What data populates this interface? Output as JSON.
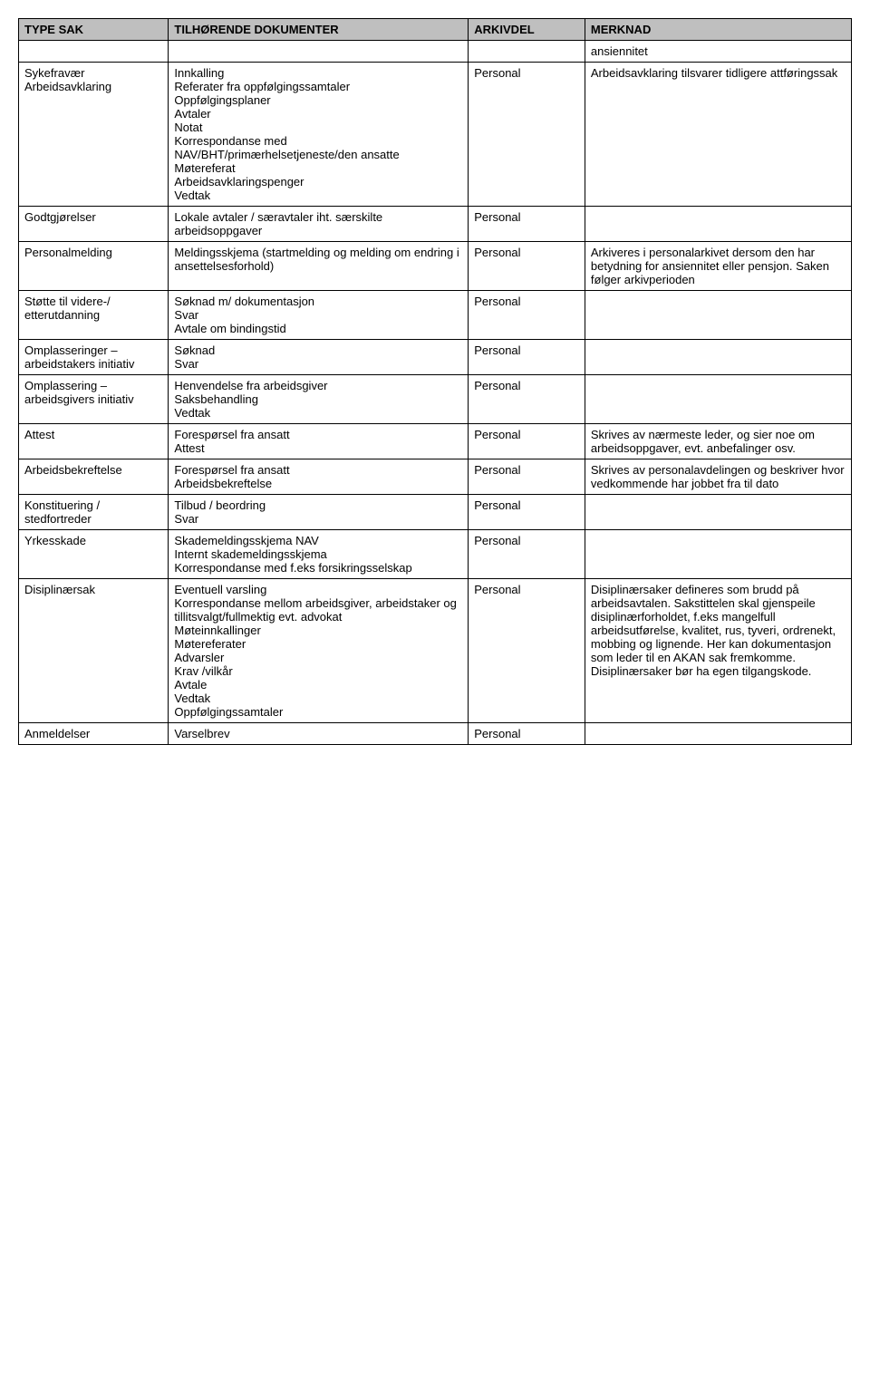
{
  "table": {
    "headers": [
      "TYPE SAK",
      "TILHØRENDE DOKUMENTER",
      "ARKIVDEL",
      "MERKNAD"
    ],
    "header_bg": "#bfbfbf",
    "border_color": "#000000",
    "font_family": "Arial",
    "font_size": 13,
    "rows": [
      {
        "type": "",
        "docs": "",
        "arkiv": "",
        "merk": "ansiennitet"
      },
      {
        "type": "Sykefravær\nArbeidsavklaring",
        "docs": "Innkalling\nReferater fra oppfølgingssamtaler\nOppfølgingsplaner\nAvtaler\nNotat\nKorrespondanse med NAV/BHT/primærhelsetjeneste/den ansatte\nMøtereferat\nArbeidsavklaringspenger\nVedtak",
        "arkiv": "Personal",
        "merk": "Arbeidsavklaring tilsvarer tidligere attføringssak"
      },
      {
        "type": "Godtgjørelser",
        "docs": "Lokale avtaler / særavtaler iht. særskilte arbeidsoppgaver",
        "arkiv": "Personal",
        "merk": ""
      },
      {
        "type": "Personalmelding",
        "docs": "Meldingsskjema (startmelding og melding om endring i ansettelsesforhold)",
        "arkiv": "Personal",
        "merk": "Arkiveres i personalarkivet dersom den har betydning for ansiennitet eller pensjon. Saken følger arkivperioden"
      },
      {
        "type": "Støtte til videre-/ etterutdanning",
        "docs": "Søknad m/ dokumentasjon\nSvar\nAvtale om bindingstid",
        "arkiv": "Personal",
        "merk": ""
      },
      {
        "type": "Omplasseringer – arbeidstakers initiativ",
        "docs": "Søknad\nSvar",
        "arkiv": "Personal",
        "merk": ""
      },
      {
        "type": "Omplassering – arbeidsgivers initiativ",
        "docs": "Henvendelse fra arbeidsgiver\nSaksbehandling\nVedtak",
        "arkiv": "Personal",
        "merk": ""
      },
      {
        "type": "Attest",
        "docs": "Forespørsel fra ansatt\nAttest",
        "arkiv": "Personal",
        "merk": "Skrives av nærmeste leder, og sier noe om arbeidsoppgaver, evt. anbefalinger osv."
      },
      {
        "type": "Arbeidsbekreftelse",
        "docs": "Forespørsel fra ansatt\nArbeidsbekreftelse",
        "arkiv": "Personal",
        "merk": "Skrives av personalavdelingen og beskriver hvor vedkommende har jobbet fra til dato"
      },
      {
        "type": "Konstituering / stedfortreder",
        "docs": "Tilbud / beordring\nSvar",
        "arkiv": "Personal",
        "merk": ""
      },
      {
        "type": "Yrkesskade",
        "docs": "Skademeldingsskjema NAV\nInternt skademeldingsskjema\nKorrespondanse med f.eks forsikringsselskap",
        "arkiv": "Personal",
        "merk": ""
      },
      {
        "type": "Disiplinærsak",
        "docs": "Eventuell varsling\nKorrespondanse mellom arbeidsgiver, arbeidstaker og tillitsvalgt/fullmektig evt. advokat\nMøteinnkallinger\nMøtereferater\nAdvarsler\nKrav /vilkår\nAvtale\nVedtak\nOppfølgingssamtaler",
        "arkiv": "Personal",
        "merk": "Disiplinærsaker defineres som brudd på arbeidsavtalen. Sakstittelen skal gjenspeile disiplinærforholdet, f.eks mangelfull arbeidsutførelse, kvalitet, rus, tyveri, ordrenekt, mobbing og lignende. Her kan dokumentasjon som leder til en AKAN sak fremkomme. Disiplinærsaker bør ha egen tilgangskode."
      },
      {
        "type": "Anmeldelser",
        "docs": "Varselbrev",
        "arkiv": "Personal",
        "merk": ""
      }
    ]
  }
}
